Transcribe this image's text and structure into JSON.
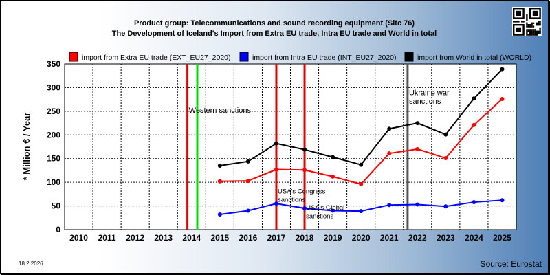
{
  "chart_data": {
    "type": "line",
    "title": "Product group: Telecommunications and sound recording equipment (Sitc 76)",
    "subtitle": "The Development of Iceland's Import from Extra EU trade, Intra EU trade and World in total",
    "ylabel": "* Million € / Year",
    "ylim": [
      0,
      350
    ],
    "yticks": [
      0,
      50,
      100,
      150,
      200,
      250,
      300,
      350
    ],
    "categories": [
      "2010",
      "2011",
      "2012",
      "2013",
      "2014",
      "2015",
      "2016",
      "2017",
      "2018",
      "2019",
      "2020",
      "2021",
      "2022",
      "2023",
      "2024",
      "2025"
    ],
    "grid": true,
    "legend_position": "top",
    "series": [
      {
        "name": "import from Extra EU trade (EXT_EU27_2020)",
        "color": "#ff0000",
        "values": [
          null,
          null,
          null,
          null,
          null,
          102,
          103,
          127,
          126,
          112,
          96,
          161,
          170,
          151,
          221,
          276
        ]
      },
      {
        "name": "import from Intra EU trade (INT_EU27_2020)",
        "color": "#0000ff",
        "values": [
          null,
          null,
          null,
          null,
          null,
          32,
          40,
          55,
          45,
          40,
          39,
          52,
          53,
          49,
          58,
          62
        ]
      },
      {
        "name": "import from World in total (WORLD)",
        "color": "#000000",
        "values": [
          null,
          null,
          null,
          null,
          null,
          135,
          144,
          182,
          169,
          153,
          137,
          213,
          225,
          201,
          277,
          339
        ]
      }
    ],
    "vlines": [
      {
        "x": 2013.85,
        "color": "#e00000"
      },
      {
        "x": 2014.2,
        "color": "#00dd00"
      },
      {
        "x": 2017.0,
        "color": "#e00000"
      },
      {
        "x": 2018.0,
        "color": "#e00000"
      },
      {
        "x": 2021.65,
        "color": "#555555"
      }
    ],
    "annotations": [
      {
        "text": "Western sanctions",
        "x": 2013.9,
        "y": 247,
        "size": "normal"
      },
      {
        "text": "Ukraine war",
        "x": 2021.7,
        "y": 284,
        "size": "normal"
      },
      {
        "text": "sanctions",
        "x": 2021.7,
        "y": 266,
        "size": "normal"
      },
      {
        "text": "USA's Congress",
        "x": 2017.05,
        "y": 76,
        "size": "small"
      },
      {
        "text": "sanctions",
        "x": 2017.05,
        "y": 59,
        "size": "small"
      },
      {
        "text": "USA's Global",
        "x": 2018.05,
        "y": 42,
        "size": "small"
      },
      {
        "text": "sanctions",
        "x": 2018.05,
        "y": 24,
        "size": "small"
      }
    ]
  },
  "footer": {
    "date": "18.2.2026",
    "source": "Source: Eurostat"
  },
  "qr_icon": "qr-code-icon"
}
